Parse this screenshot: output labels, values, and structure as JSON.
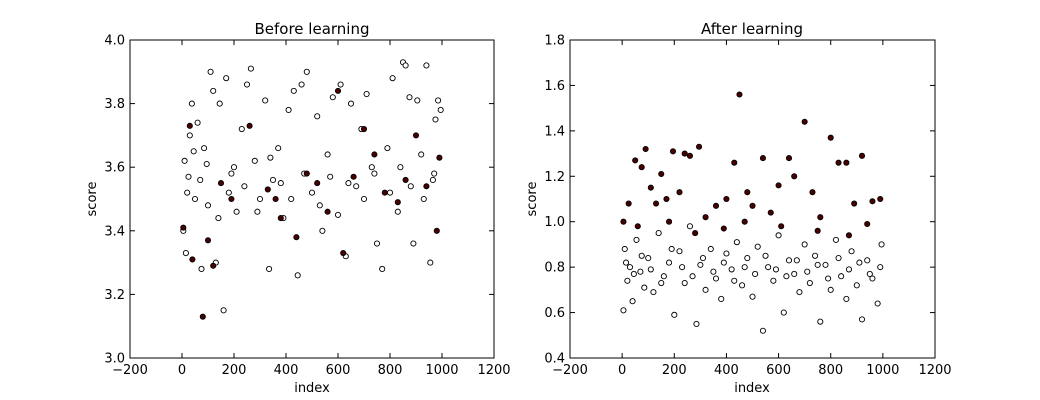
{
  "chart_data": [
    {
      "type": "scatter",
      "title": "Before learning",
      "xlabel": "index",
      "ylabel": "score",
      "xlim": [
        -200,
        1200
      ],
      "ylim": [
        3.0,
        4.0
      ],
      "xticks": [
        -200,
        0,
        200,
        400,
        600,
        800,
        1000,
        1200
      ],
      "xtick_labels": [
        "−200",
        "0",
        "200",
        "400",
        "600",
        "800",
        "1000",
        "1200"
      ],
      "yticks": [
        3.0,
        3.2,
        3.4,
        3.6,
        3.8,
        4.0
      ],
      "ytick_labels": [
        "3.0",
        "3.2",
        "3.4",
        "3.6",
        "3.8",
        "4.0"
      ],
      "grid": false,
      "series": [
        {
          "marker_face": "#ffffff",
          "marker_edge": "#000000",
          "points": [
            [
              5,
              3.4
            ],
            [
              10,
              3.62
            ],
            [
              15,
              3.33
            ],
            [
              25,
              3.57
            ],
            [
              30,
              3.7
            ],
            [
              38,
              3.8
            ],
            [
              50,
              3.5
            ],
            [
              60,
              3.74
            ],
            [
              75,
              3.28
            ],
            [
              85,
              3.66
            ],
            [
              100,
              3.48
            ],
            [
              110,
              3.9
            ],
            [
              120,
              3.84
            ],
            [
              130,
              3.3
            ],
            [
              145,
              3.8
            ],
            [
              160,
              3.15
            ],
            [
              170,
              3.88
            ],
            [
              190,
              3.58
            ],
            [
              210,
              3.46
            ],
            [
              230,
              3.72
            ],
            [
              250,
              3.86
            ],
            [
              265,
              3.91
            ],
            [
              280,
              3.62
            ],
            [
              300,
              3.5
            ],
            [
              320,
              3.81
            ],
            [
              335,
              3.28
            ],
            [
              350,
              3.56
            ],
            [
              370,
              3.66
            ],
            [
              390,
              3.44
            ],
            [
              410,
              3.78
            ],
            [
              430,
              3.84
            ],
            [
              445,
              3.26
            ],
            [
              460,
              3.86
            ],
            [
              480,
              3.9
            ],
            [
              500,
              3.52
            ],
            [
              520,
              3.76
            ],
            [
              540,
              3.4
            ],
            [
              560,
              3.64
            ],
            [
              580,
              3.82
            ],
            [
              610,
              3.86
            ],
            [
              630,
              3.32
            ],
            [
              650,
              3.8
            ],
            [
              670,
              3.54
            ],
            [
              690,
              3.72
            ],
            [
              710,
              3.83
            ],
            [
              730,
              3.6
            ],
            [
              750,
              3.36
            ],
            [
              770,
              3.28
            ],
            [
              790,
              3.66
            ],
            [
              810,
              3.88
            ],
            [
              830,
              3.46
            ],
            [
              850,
              3.93
            ],
            [
              860,
              3.92
            ],
            [
              875,
              3.82
            ],
            [
              890,
              3.36
            ],
            [
              905,
              3.81
            ],
            [
              920,
              3.64
            ],
            [
              940,
              3.92
            ],
            [
              955,
              3.3
            ],
            [
              965,
              3.56
            ],
            [
              975,
              3.75
            ],
            [
              985,
              3.81
            ],
            [
              995,
              3.78
            ],
            [
              20,
              3.52
            ],
            [
              45,
              3.65
            ],
            [
              70,
              3.56
            ],
            [
              95,
              3.61
            ],
            [
              140,
              3.44
            ],
            [
              180,
              3.52
            ],
            [
              200,
              3.6
            ],
            [
              240,
              3.54
            ],
            [
              290,
              3.46
            ],
            [
              340,
              3.63
            ],
            [
              380,
              3.55
            ],
            [
              420,
              3.5
            ],
            [
              470,
              3.58
            ],
            [
              530,
              3.48
            ],
            [
              570,
              3.57
            ],
            [
              600,
              3.45
            ],
            [
              640,
              3.55
            ],
            [
              700,
              3.5
            ],
            [
              740,
              3.58
            ],
            [
              800,
              3.52
            ],
            [
              840,
              3.6
            ],
            [
              880,
              3.54
            ],
            [
              930,
              3.5
            ],
            [
              970,
              3.58
            ]
          ]
        },
        {
          "marker_face": "#4a0000",
          "marker_edge": "#000000",
          "points": [
            [
              5,
              3.41
            ],
            [
              30,
              3.73
            ],
            [
              40,
              3.31
            ],
            [
              80,
              3.13
            ],
            [
              100,
              3.37
            ],
            [
              120,
              3.29
            ],
            [
              150,
              3.55
            ],
            [
              190,
              3.5
            ],
            [
              260,
              3.73
            ],
            [
              330,
              3.53
            ],
            [
              380,
              3.44
            ],
            [
              440,
              3.38
            ],
            [
              480,
              3.58
            ],
            [
              520,
              3.55
            ],
            [
              600,
              3.84
            ],
            [
              620,
              3.33
            ],
            [
              660,
              3.57
            ],
            [
              700,
              3.72
            ],
            [
              740,
              3.64
            ],
            [
              780,
              3.52
            ],
            [
              830,
              3.49
            ],
            [
              900,
              3.7
            ],
            [
              940,
              3.54
            ],
            [
              980,
              3.4
            ],
            [
              990,
              3.63
            ],
            [
              360,
              3.5
            ],
            [
              560,
              3.46
            ],
            [
              860,
              3.56
            ]
          ]
        }
      ]
    },
    {
      "type": "scatter",
      "title": "After learning",
      "xlabel": "index",
      "ylabel": "score",
      "xlim": [
        -200,
        1200
      ],
      "ylim": [
        0.4,
        1.8
      ],
      "xticks": [
        -200,
        0,
        200,
        400,
        600,
        800,
        1000,
        1200
      ],
      "xtick_labels": [
        "−200",
        "0",
        "200",
        "400",
        "600",
        "800",
        "1000",
        "1200"
      ],
      "yticks": [
        0.4,
        0.6,
        0.8,
        1.0,
        1.2,
        1.4,
        1.6,
        1.8
      ],
      "ytick_labels": [
        "0.4",
        "0.6",
        "0.8",
        "1.0",
        "1.2",
        "1.4",
        "1.6",
        "1.8"
      ],
      "grid": false,
      "series": [
        {
          "marker_face": "#ffffff",
          "marker_edge": "#000000",
          "points": [
            [
              5,
              0.61
            ],
            [
              10,
              0.88
            ],
            [
              20,
              0.74
            ],
            [
              30,
              0.8
            ],
            [
              40,
              0.65
            ],
            [
              55,
              0.92
            ],
            [
              70,
              0.78
            ],
            [
              85,
              0.71
            ],
            [
              100,
              0.84
            ],
            [
              120,
              0.69
            ],
            [
              140,
              0.95
            ],
            [
              160,
              0.76
            ],
            [
              180,
              0.82
            ],
            [
              200,
              0.59
            ],
            [
              220,
              0.87
            ],
            [
              240,
              0.73
            ],
            [
              260,
              0.98
            ],
            [
              285,
              0.55
            ],
            [
              300,
              0.81
            ],
            [
              320,
              0.7
            ],
            [
              340,
              0.88
            ],
            [
              360,
              0.75
            ],
            [
              380,
              0.66
            ],
            [
              400,
              0.86
            ],
            [
              420,
              0.79
            ],
            [
              440,
              0.91
            ],
            [
              460,
              0.72
            ],
            [
              480,
              0.84
            ],
            [
              500,
              0.67
            ],
            [
              520,
              0.89
            ],
            [
              540,
              0.52
            ],
            [
              560,
              0.8
            ],
            [
              580,
              0.74
            ],
            [
              600,
              0.94
            ],
            [
              620,
              0.6
            ],
            [
              640,
              0.83
            ],
            [
              660,
              0.77
            ],
            [
              680,
              0.69
            ],
            [
              700,
              0.9
            ],
            [
              720,
              0.73
            ],
            [
              740,
              0.85
            ],
            [
              760,
              0.56
            ],
            [
              780,
              0.81
            ],
            [
              800,
              0.7
            ],
            [
              820,
              0.92
            ],
            [
              840,
              0.76
            ],
            [
              860,
              0.66
            ],
            [
              880,
              0.87
            ],
            [
              900,
              0.72
            ],
            [
              920,
              0.57
            ],
            [
              940,
              0.83
            ],
            [
              960,
              0.75
            ],
            [
              980,
              0.64
            ],
            [
              995,
              0.9
            ],
            [
              15,
              0.82
            ],
            [
              45,
              0.77
            ],
            [
              75,
              0.85
            ],
            [
              110,
              0.79
            ],
            [
              150,
              0.73
            ],
            [
              190,
              0.88
            ],
            [
              230,
              0.8
            ],
            [
              270,
              0.76
            ],
            [
              310,
              0.84
            ],
            [
              350,
              0.78
            ],
            [
              390,
              0.82
            ],
            [
              430,
              0.74
            ],
            [
              470,
              0.8
            ],
            [
              510,
              0.77
            ],
            [
              550,
              0.85
            ],
            [
              590,
              0.79
            ],
            [
              630,
              0.76
            ],
            [
              670,
              0.83
            ],
            [
              710,
              0.78
            ],
            [
              750,
              0.81
            ],
            [
              790,
              0.75
            ],
            [
              830,
              0.84
            ],
            [
              870,
              0.79
            ],
            [
              910,
              0.82
            ],
            [
              950,
              0.77
            ],
            [
              990,
              0.8
            ]
          ]
        },
        {
          "marker_face": "#4a0000",
          "marker_edge": "#000000",
          "points": [
            [
              5,
              1.0
            ],
            [
              25,
              1.08
            ],
            [
              50,
              1.27
            ],
            [
              75,
              1.24
            ],
            [
              90,
              1.32
            ],
            [
              110,
              1.15
            ],
            [
              130,
              1.08
            ],
            [
              150,
              1.21
            ],
            [
              170,
              1.1
            ],
            [
              195,
              1.31
            ],
            [
              220,
              1.13
            ],
            [
              240,
              1.3
            ],
            [
              260,
              1.29
            ],
            [
              295,
              1.33
            ],
            [
              320,
              1.02
            ],
            [
              360,
              1.07
            ],
            [
              400,
              1.1
            ],
            [
              430,
              1.26
            ],
            [
              450,
              1.56
            ],
            [
              480,
              1.13
            ],
            [
              500,
              1.07
            ],
            [
              540,
              1.28
            ],
            [
              570,
              1.04
            ],
            [
              600,
              1.16
            ],
            [
              640,
              1.28
            ],
            [
              660,
              1.2
            ],
            [
              700,
              1.44
            ],
            [
              730,
              1.13
            ],
            [
              760,
              1.02
            ],
            [
              800,
              1.37
            ],
            [
              830,
              1.26
            ],
            [
              860,
              1.26
            ],
            [
              890,
              1.08
            ],
            [
              920,
              1.29
            ],
            [
              960,
              1.09
            ],
            [
              990,
              1.1
            ],
            [
              60,
              0.98
            ],
            [
              180,
              1.0
            ],
            [
              280,
              0.95
            ],
            [
              390,
              0.97
            ],
            [
              470,
              1.0
            ],
            [
              610,
              0.98
            ],
            [
              750,
              0.96
            ],
            [
              870,
              0.94
            ],
            [
              940,
              0.99
            ]
          ]
        }
      ]
    }
  ]
}
